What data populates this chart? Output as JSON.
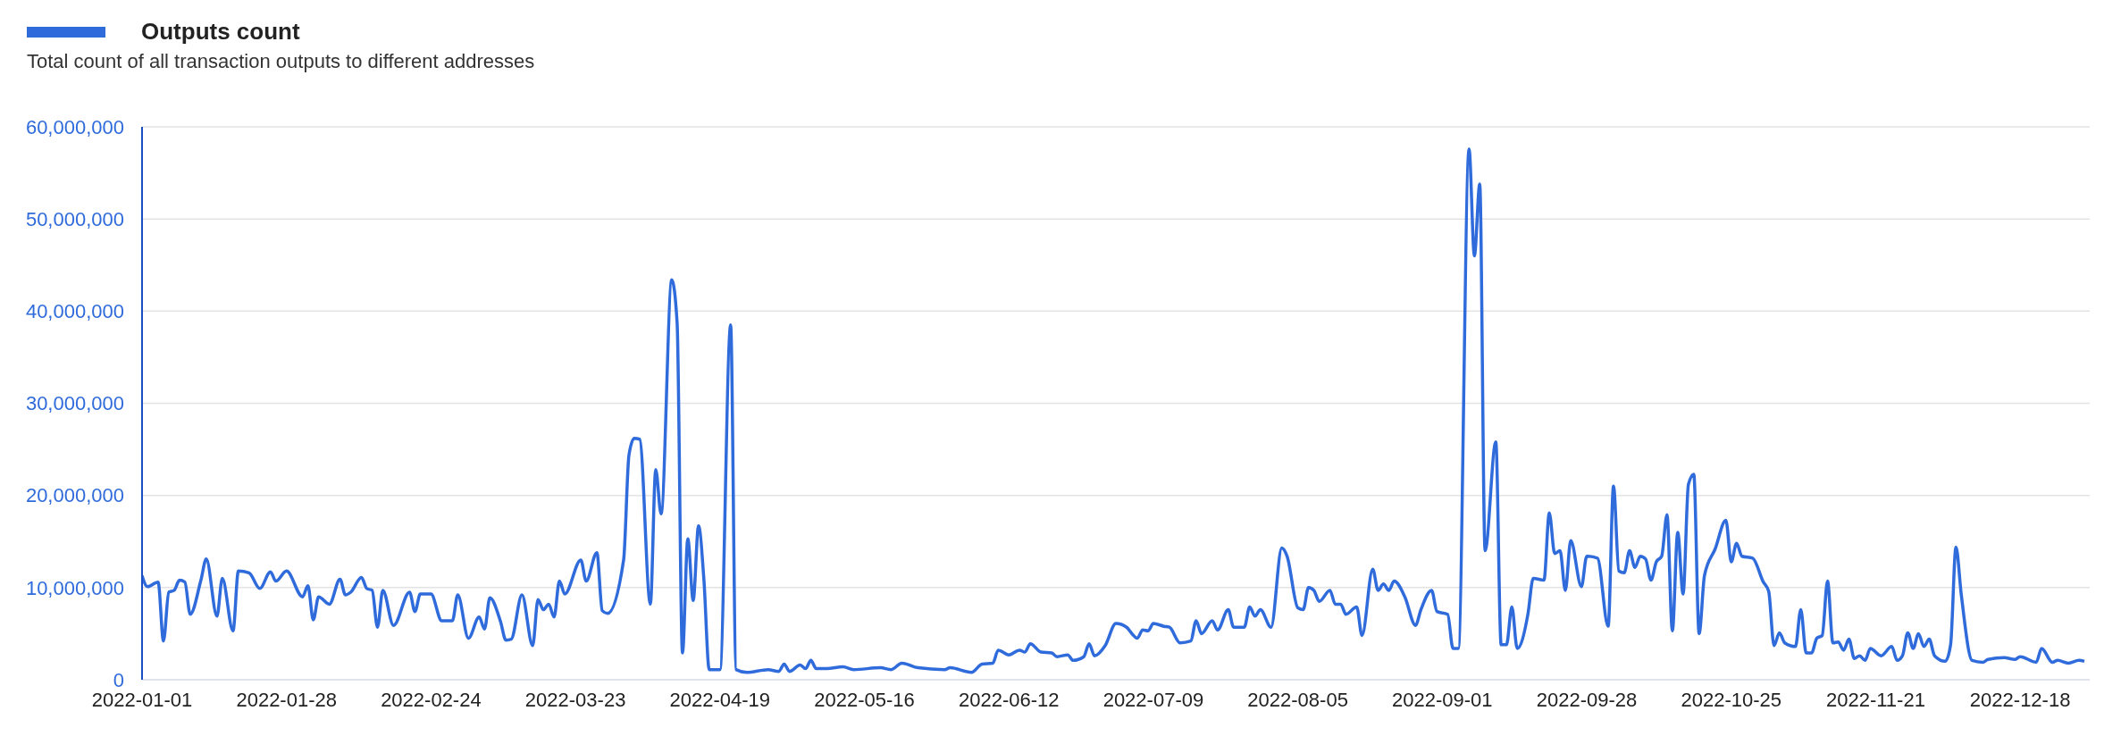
{
  "chart_data": {
    "type": "line",
    "subtitle": "Total count of all transaction outputs to different addresses",
    "legend": "top left",
    "grid": "y",
    "marker": "none",
    "line_style": "solid",
    "xlim": [
      "2022-01-01",
      "2022-12-31"
    ],
    "xticks": [
      "2022-01-01",
      "2022-01-28",
      "2022-02-24",
      "2022-03-23",
      "2022-04-19",
      "2022-05-16",
      "2022-06-12",
      "2022-07-09",
      "2022-08-05",
      "2022-09-01",
      "2022-09-28",
      "2022-10-25",
      "2022-11-21",
      "2022-12-18"
    ],
    "ylim": [
      0,
      60000000
    ],
    "yticks": [
      0,
      {
        "value": 10000000,
        "label": "10,000,000"
      },
      {
        "value": 20000000,
        "label": "20,000,000"
      },
      {
        "value": 30000000,
        "label": "30,000,000"
      },
      {
        "value": 40000000,
        "label": "40,000,000"
      },
      {
        "value": 50000000,
        "label": "50,000,000"
      },
      {
        "value": 60000000,
        "label": "60,000,000"
      }
    ],
    "x": [
      "2022-01-01",
      "2022-01-02",
      "2022-01-04",
      "2022-01-05",
      "2022-01-06",
      "2022-01-07",
      "2022-01-08",
      "2022-01-09",
      "2022-01-10",
      "2022-01-12",
      "2022-01-13",
      "2022-01-15",
      "2022-01-16",
      "2022-01-18",
      "2022-01-19",
      "2022-01-21",
      "2022-01-23",
      "2022-01-25",
      "2022-01-26",
      "2022-01-28",
      "2022-01-31",
      "2022-02-01",
      "2022-02-02",
      "2022-02-03",
      "2022-02-05",
      "2022-02-07",
      "2022-02-08",
      "2022-02-09",
      "2022-02-11",
      "2022-02-12",
      "2022-02-13",
      "2022-02-14",
      "2022-02-15",
      "2022-02-17",
      "2022-02-20",
      "2022-02-21",
      "2022-02-22",
      "2022-02-24",
      "2022-02-26",
      "2022-02-28",
      "2022-03-01",
      "2022-03-03",
      "2022-03-05",
      "2022-03-06",
      "2022-03-07",
      "2022-03-09",
      "2022-03-10",
      "2022-03-11",
      "2022-03-13",
      "2022-03-15",
      "2022-03-16",
      "2022-03-17",
      "2022-03-18",
      "2022-03-19",
      "2022-03-20",
      "2022-03-21",
      "2022-03-24",
      "2022-03-25",
      "2022-03-27",
      "2022-03-28",
      "2022-03-29",
      "2022-04-01",
      "2022-04-02",
      "2022-04-03",
      "2022-04-04",
      "2022-04-06",
      "2022-04-07",
      "2022-04-08",
      "2022-04-10",
      "2022-04-11",
      "2022-04-12",
      "2022-04-13",
      "2022-04-14",
      "2022-04-15",
      "2022-04-16",
      "2022-04-17",
      "2022-04-19",
      "2022-04-21",
      "2022-04-22",
      "2022-04-24",
      "2022-04-28",
      "2022-04-30",
      "2022-05-01",
      "2022-05-02",
      "2022-05-04",
      "2022-05-05",
      "2022-05-06",
      "2022-05-07",
      "2022-05-09",
      "2022-05-12",
      "2022-05-14",
      "2022-05-19",
      "2022-05-21",
      "2022-05-23",
      "2022-05-26",
      "2022-05-31",
      "2022-06-01",
      "2022-06-05",
      "2022-06-07",
      "2022-06-09",
      "2022-06-10",
      "2022-06-12",
      "2022-06-14",
      "2022-06-15",
      "2022-06-16",
      "2022-06-18",
      "2022-06-20",
      "2022-06-21",
      "2022-06-23",
      "2022-06-24",
      "2022-06-26",
      "2022-06-27",
      "2022-06-28",
      "2022-06-30",
      "2022-07-02",
      "2022-07-04",
      "2022-07-05",
      "2022-07-06",
      "2022-07-07",
      "2022-07-08",
      "2022-07-09",
      "2022-07-11",
      "2022-07-12",
      "2022-07-14",
      "2022-07-16",
      "2022-07-17",
      "2022-07-18",
      "2022-07-20",
      "2022-07-21",
      "2022-07-23",
      "2022-07-24",
      "2022-07-26",
      "2022-07-27",
      "2022-07-28",
      "2022-07-29",
      "2022-07-31",
      "2022-08-02",
      "2022-08-03",
      "2022-08-05",
      "2022-08-06",
      "2022-08-07",
      "2022-08-08",
      "2022-08-09",
      "2022-08-11",
      "2022-08-12",
      "2022-08-13",
      "2022-08-14",
      "2022-08-16",
      "2022-08-17",
      "2022-08-19",
      "2022-08-20",
      "2022-08-21",
      "2022-08-22",
      "2022-08-23",
      "2022-08-25",
      "2022-08-27",
      "2022-08-28",
      "2022-08-30",
      "2022-08-31",
      "2022-09-02",
      "2022-09-03",
      "2022-09-04",
      "2022-09-06",
      "2022-09-07",
      "2022-09-08",
      "2022-09-09",
      "2022-09-11",
      "2022-09-12",
      "2022-09-13",
      "2022-09-14",
      "2022-09-15",
      "2022-09-17",
      "2022-09-18",
      "2022-09-20",
      "2022-09-21",
      "2022-09-22",
      "2022-09-23",
      "2022-09-24",
      "2022-09-25",
      "2022-09-27",
      "2022-09-28",
      "2022-09-30",
      "2022-10-02",
      "2022-10-03",
      "2022-10-04",
      "2022-10-05",
      "2022-10-06",
      "2022-10-07",
      "2022-10-08",
      "2022-10-09",
      "2022-10-10",
      "2022-10-11",
      "2022-10-12",
      "2022-10-13",
      "2022-10-14",
      "2022-10-15",
      "2022-10-16",
      "2022-10-17",
      "2022-10-18",
      "2022-10-19",
      "2022-10-20",
      "2022-10-22",
      "2022-10-24",
      "2022-10-25",
      "2022-10-26",
      "2022-10-27",
      "2022-10-29",
      "2022-10-31",
      "2022-11-01",
      "2022-11-02",
      "2022-11-03",
      "2022-11-04",
      "2022-11-06",
      "2022-11-07",
      "2022-11-08",
      "2022-11-09",
      "2022-11-10",
      "2022-11-11",
      "2022-11-12",
      "2022-11-13",
      "2022-11-14",
      "2022-11-15",
      "2022-11-16",
      "2022-11-17",
      "2022-11-18",
      "2022-11-19",
      "2022-11-20",
      "2022-11-22",
      "2022-11-24",
      "2022-11-25",
      "2022-11-26",
      "2022-11-27",
      "2022-11-28",
      "2022-11-29",
      "2022-11-30",
      "2022-12-01",
      "2022-12-02",
      "2022-12-04",
      "2022-12-05",
      "2022-12-06",
      "2022-12-07",
      "2022-12-09",
      "2022-12-11",
      "2022-12-12",
      "2022-12-15",
      "2022-12-17",
      "2022-12-18",
      "2022-12-21",
      "2022-12-22",
      "2022-12-24",
      "2022-12-25",
      "2022-12-27",
      "2022-12-29",
      "2022-12-30"
    ],
    "series": [
      {
        "name": "Outputs count",
        "color": "#2f6bdb",
        "values": [
          11300000,
          10100000,
          10600000,
          4200000,
          9500000,
          9700000,
          10800000,
          10600000,
          7100000,
          10800000,
          13100000,
          6900000,
          11000000,
          5300000,
          11800000,
          11600000,
          9900000,
          11700000,
          10700000,
          11800000,
          9000000,
          10200000,
          6500000,
          9000000,
          8200000,
          10900000,
          9200000,
          9500000,
          11100000,
          9900000,
          9700000,
          5700000,
          9700000,
          5900000,
          9500000,
          7400000,
          9300000,
          9300000,
          6400000,
          6400000,
          9200000,
          4500000,
          6800000,
          5500000,
          8900000,
          6300000,
          4300000,
          4400000,
          9200000,
          3700000,
          8700000,
          7600000,
          8200000,
          6800000,
          10700000,
          9300000,
          13000000,
          10700000,
          13800000,
          7500000,
          7200000,
          13000000,
          24400000,
          26200000,
          26100000,
          8200000,
          22800000,
          18000000,
          43400000,
          38700000,
          2900000,
          15300000,
          8600000,
          16700000,
          10900000,
          1100000,
          1100000,
          38500000,
          1100000,
          800000,
          1100000,
          900000,
          1700000,
          900000,
          1600000,
          1200000,
          2100000,
          1200000,
          1200000,
          1400000,
          1100000,
          1300000,
          1100000,
          1800000,
          1300000,
          1100000,
          1300000,
          800000,
          1700000,
          1800000,
          3200000,
          2700000,
          3200000,
          3000000,
          3900000,
          3000000,
          2900000,
          2500000,
          2700000,
          2100000,
          2500000,
          3900000,
          2600000,
          3700000,
          6100000,
          5700000,
          5000000,
          4500000,
          5400000,
          5300000,
          6100000,
          5800000,
          5700000,
          4000000,
          4200000,
          6400000,
          5000000,
          6400000,
          5400000,
          7600000,
          5700000,
          5700000,
          7900000,
          6900000,
          7600000,
          5700000,
          14300000,
          13400000,
          7800000,
          7600000,
          10000000,
          9700000,
          8500000,
          9700000,
          8200000,
          8200000,
          7100000,
          7900000,
          4800000,
          12000000,
          9700000,
          10400000,
          9700000,
          10700000,
          9000000,
          5900000,
          7600000,
          9700000,
          7400000,
          7100000,
          3400000,
          3400000,
          57600000,
          46000000,
          53800000,
          14000000,
          25800000,
          3800000,
          3800000,
          7900000,
          3400000,
          7100000,
          11000000,
          10800000,
          18100000,
          13700000,
          14000000,
          9700000,
          15100000,
          10100000,
          13400000,
          13200000,
          5800000,
          21000000,
          11800000,
          11600000,
          14000000,
          12200000,
          13400000,
          13100000,
          10800000,
          12800000,
          13400000,
          17900000,
          5300000,
          16000000,
          9300000,
          21200000,
          22300000,
          5000000,
          11300000,
          14200000,
          17300000,
          12800000,
          14800000,
          13400000,
          13200000,
          10600000,
          9600000,
          3700000,
          5100000,
          4000000,
          3600000,
          7600000,
          2900000,
          2900000,
          4500000,
          4800000,
          10700000,
          4000000,
          4100000,
          3200000,
          4400000,
          2300000,
          2600000,
          2100000,
          3400000,
          2600000,
          3600000,
          2100000,
          2600000,
          5100000,
          3400000,
          5000000,
          3600000,
          4400000,
          2600000,
          2000000,
          3800000,
          14400000,
          9200000,
          2100000,
          1900000,
          2200000,
          2400000,
          2200000,
          2500000,
          1900000,
          3400000,
          1900000,
          2100000,
          1800000,
          2100000,
          2000000
        ]
      }
    ]
  }
}
